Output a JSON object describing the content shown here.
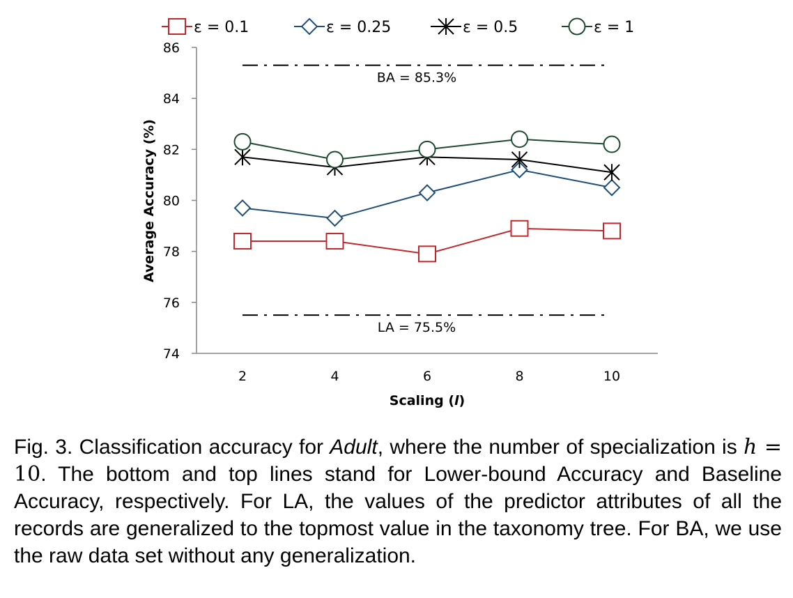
{
  "chart_data": {
    "type": "line",
    "title": "",
    "xlabel": "Scaling (l)",
    "xlabel_parts": [
      "Scaling (",
      "l",
      ")"
    ],
    "ylabel": "Average Accuracy (%)",
    "x": [
      2,
      4,
      6,
      8,
      10
    ],
    "x_tick_labels": [
      "2",
      "4",
      "6",
      "8",
      "10"
    ],
    "ylim": [
      74,
      86
    ],
    "y_ticks": [
      74,
      76,
      78,
      80,
      82,
      84,
      86
    ],
    "y_tick_labels": [
      "74",
      "76",
      "78",
      "80",
      "82",
      "84",
      "86"
    ],
    "grid": false,
    "legend_position": "top",
    "series": [
      {
        "name": "ε = 0.1",
        "values": [
          78.4,
          78.4,
          77.9,
          78.9,
          78.8
        ],
        "color": "#c0282d",
        "marker": "square"
      },
      {
        "name": "ε = 0.25",
        "values": [
          79.7,
          79.3,
          80.3,
          81.2,
          80.5
        ],
        "color": "#1f4e79",
        "marker": "diamond"
      },
      {
        "name": "ε = 0.5",
        "values": [
          81.7,
          81.3,
          81.7,
          81.6,
          81.1
        ],
        "color": "#000000",
        "marker": "star"
      },
      {
        "name": "ε = 1",
        "values": [
          82.3,
          81.6,
          82.0,
          82.4,
          82.2
        ],
        "color": "#1d4a2e",
        "marker": "circle"
      }
    ],
    "reference_lines": [
      {
        "label": "BA = 85.3%",
        "value": 85.3,
        "style": "dash-dot"
      },
      {
        "label": "LA = 75.5%",
        "value": 75.5,
        "style": "dash-dot"
      }
    ]
  },
  "caption": {
    "prefix": "Fig. 3. Classification accuracy for ",
    "dataset": "Adult",
    "mid": ", where the number of specialization is ",
    "math_var": "h",
    "math_rest": " = 10",
    "suffix": ". The bottom and top lines stand for Lower-bound Accuracy and Baseline Accuracy, respectively. For LA, the values of the predictor attributes of all the records are generalized to the topmost value in the taxonomy tree. For BA, we use the raw data set without any generalization."
  }
}
